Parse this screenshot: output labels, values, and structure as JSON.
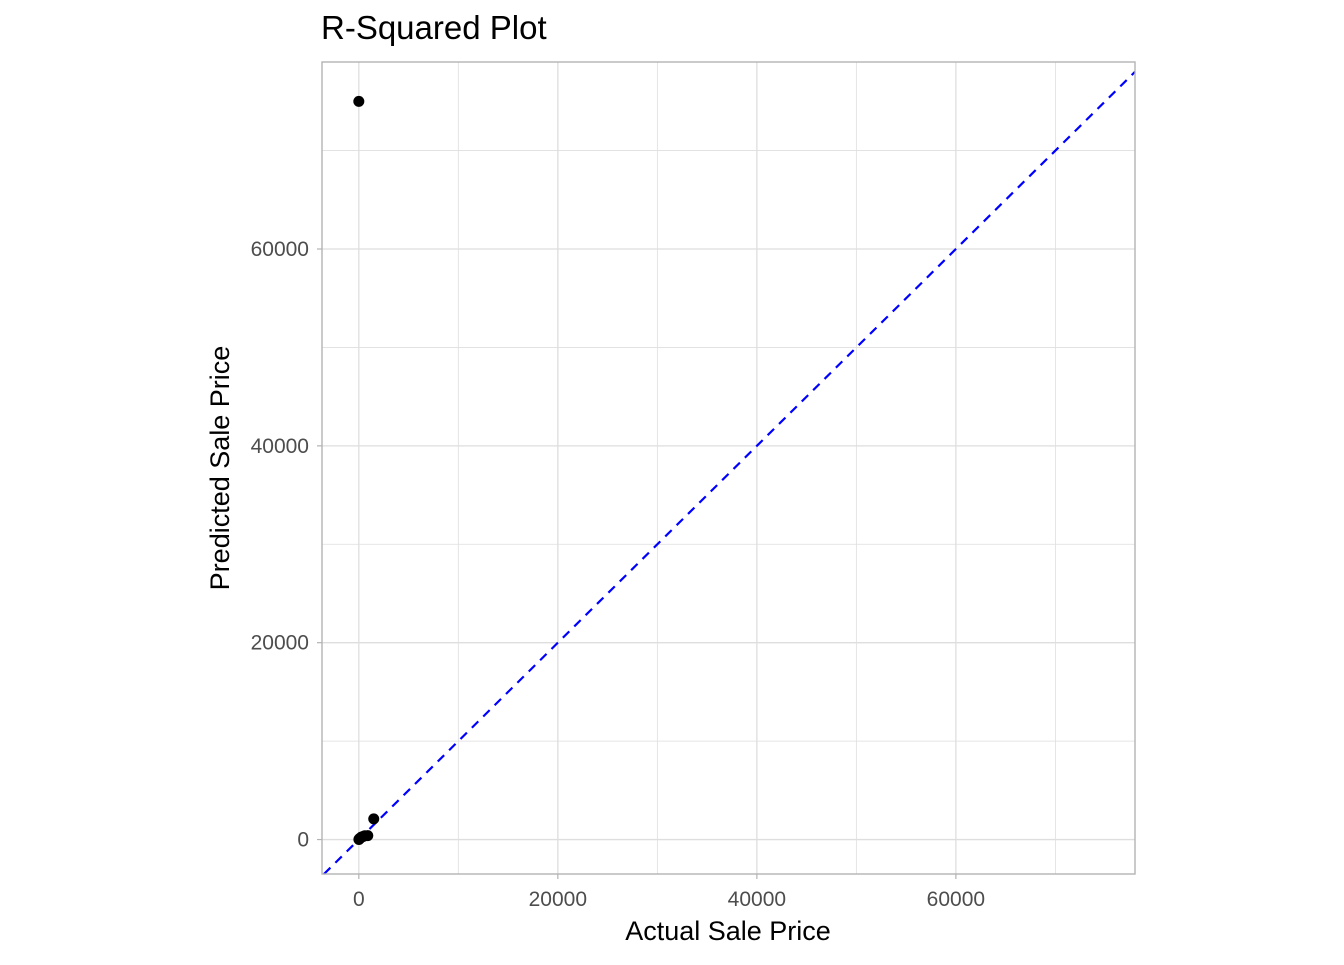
{
  "chart_data": {
    "type": "scatter",
    "title": "R-Squared Plot",
    "xlabel": "Actual Sale Price",
    "ylabel": "Predicted Sale Price",
    "xlim": [
      -3700,
      78000
    ],
    "ylim": [
      -3500,
      79000
    ],
    "x_ticks": [
      0,
      20000,
      40000,
      60000
    ],
    "x_tick_labels": [
      "0",
      "20000",
      "40000",
      "60000"
    ],
    "y_ticks": [
      0,
      20000,
      40000,
      60000
    ],
    "y_tick_labels": [
      "0",
      "20000",
      "40000",
      "60000"
    ],
    "x_minor_gridlines": [
      10000,
      30000,
      50000,
      70000
    ],
    "y_minor_gridlines": [
      10000,
      30000,
      50000,
      70000
    ],
    "grid": true,
    "points": [
      {
        "x": 0,
        "y": 75000
      },
      {
        "x": 1500,
        "y": 2100
      },
      {
        "x": 900,
        "y": 400
      },
      {
        "x": 600,
        "y": 380
      },
      {
        "x": 400,
        "y": 300
      },
      {
        "x": 250,
        "y": 250
      },
      {
        "x": 150,
        "y": 150
      },
      {
        "x": 80,
        "y": 90
      },
      {
        "x": 30,
        "y": 40
      },
      {
        "x": 10,
        "y": 10
      }
    ],
    "reference_line": {
      "slope": 1,
      "intercept": 0,
      "style": "dashed"
    },
    "colors": {
      "points": "#000000",
      "reference_line": "#0000ff",
      "grid": "#dedede",
      "panel_border": "#b3b3b3",
      "tick_label": "#4d4d4d"
    }
  }
}
